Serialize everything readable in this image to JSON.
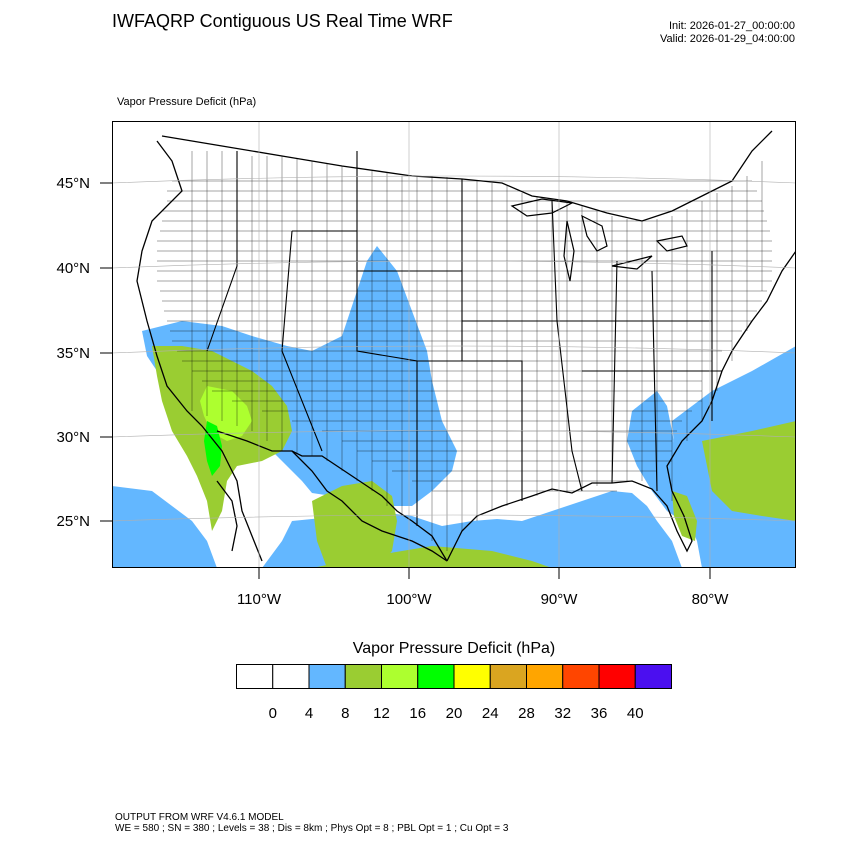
{
  "header": {
    "title": "IWFAQRP Contiguous US Real Time WRF",
    "init": "Init: 2026-01-27_00:00:00",
    "valid": "Valid: 2026-01-29_04:00:00"
  },
  "map": {
    "field_label": "Vapor Pressure Deficit   (hPa)",
    "lat_labels": [
      "45°N",
      "40°N",
      "35°N",
      "30°N",
      "25°N"
    ],
    "lon_labels": [
      "110°W",
      "100°W",
      "90°W",
      "80°W"
    ]
  },
  "colorbar": {
    "title": "Vapor Pressure Deficit  (hPa)",
    "labels": [
      "0",
      "4",
      "8",
      "12",
      "16",
      "20",
      "24",
      "28",
      "32",
      "36",
      "40"
    ],
    "colors": [
      "#ffffff",
      "#ffffff",
      "#63b7ff",
      "#9acd32",
      "#adff2f",
      "#00ff00",
      "#ffff00",
      "#daa520",
      "#ffa500",
      "#ff4500",
      "#ff0000",
      "#4b0ff0"
    ]
  },
  "footer": {
    "line1": "OUTPUT FROM WRF V4.6.1 MODEL",
    "line2": "WE = 580 ; SN = 380 ; Levels = 38 ; Dis = 8km ; Phys Opt = 8 ; PBL Opt = 1 ; Cu Opt = 3"
  }
}
